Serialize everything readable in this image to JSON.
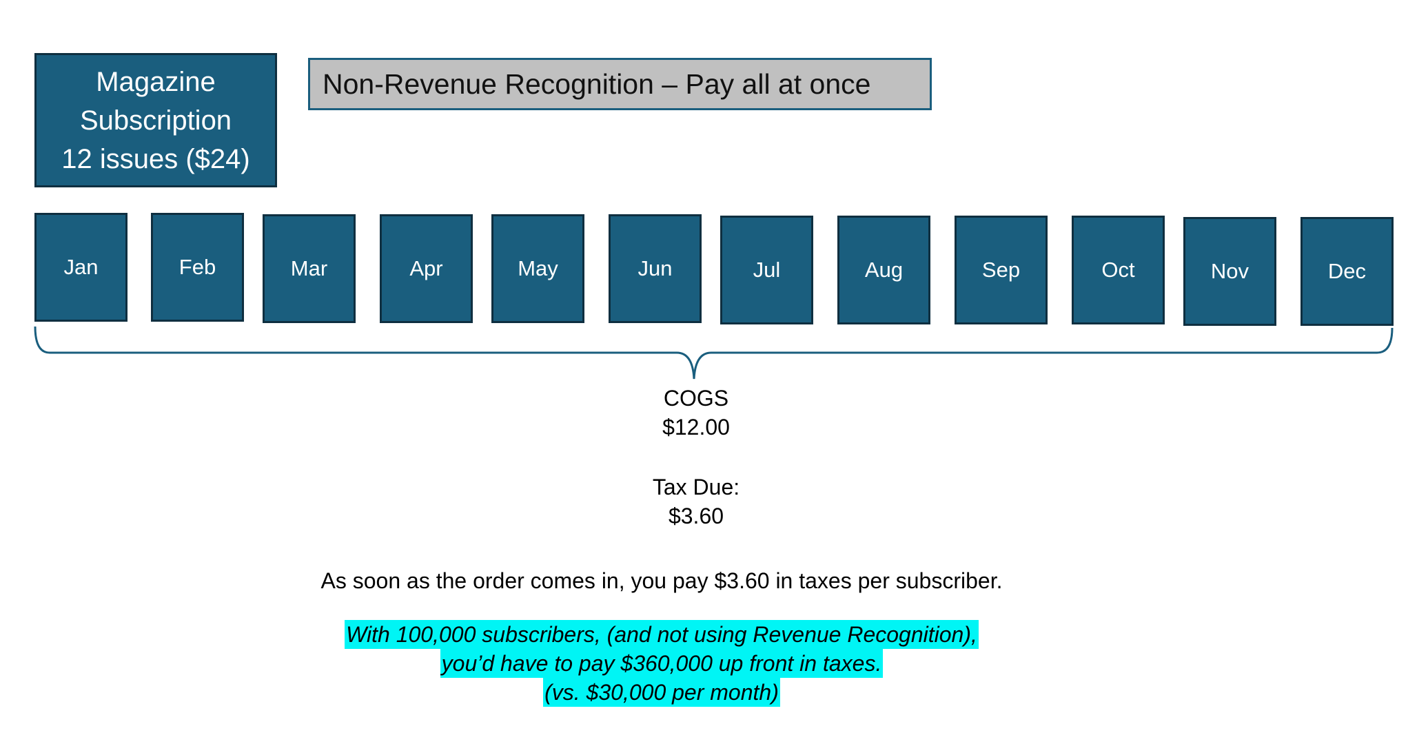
{
  "title_box": {
    "line1": "Magazine",
    "line2": "Subscription",
    "line3": "12 issues ($24)"
  },
  "heading": "Non-Revenue Recognition – Pay all at once",
  "months": [
    "Jan",
    "Feb",
    "Mar",
    "Apr",
    "May",
    "Jun",
    "Jul",
    "Aug",
    "Sep",
    "Oct",
    "Nov",
    "Dec"
  ],
  "cogs": {
    "label": "COGS",
    "value": "$12.00"
  },
  "tax": {
    "label": "Tax Due:",
    "value": "$3.60"
  },
  "note": "As soon as the order comes in, you pay $3.60 in taxes per subscriber.",
  "highlight": {
    "line1": "With 100,000 subscribers, (and not using Revenue Recognition),",
    "line2": "you’d have to pay $360,000 up front in taxes.",
    "line3": "(vs. $30,000 per month)"
  },
  "colors": {
    "box_fill": "#1a5e7e",
    "box_border": "#0f2f40",
    "heading_fill": "#c0c0c0",
    "highlight": "#00f5f5"
  }
}
